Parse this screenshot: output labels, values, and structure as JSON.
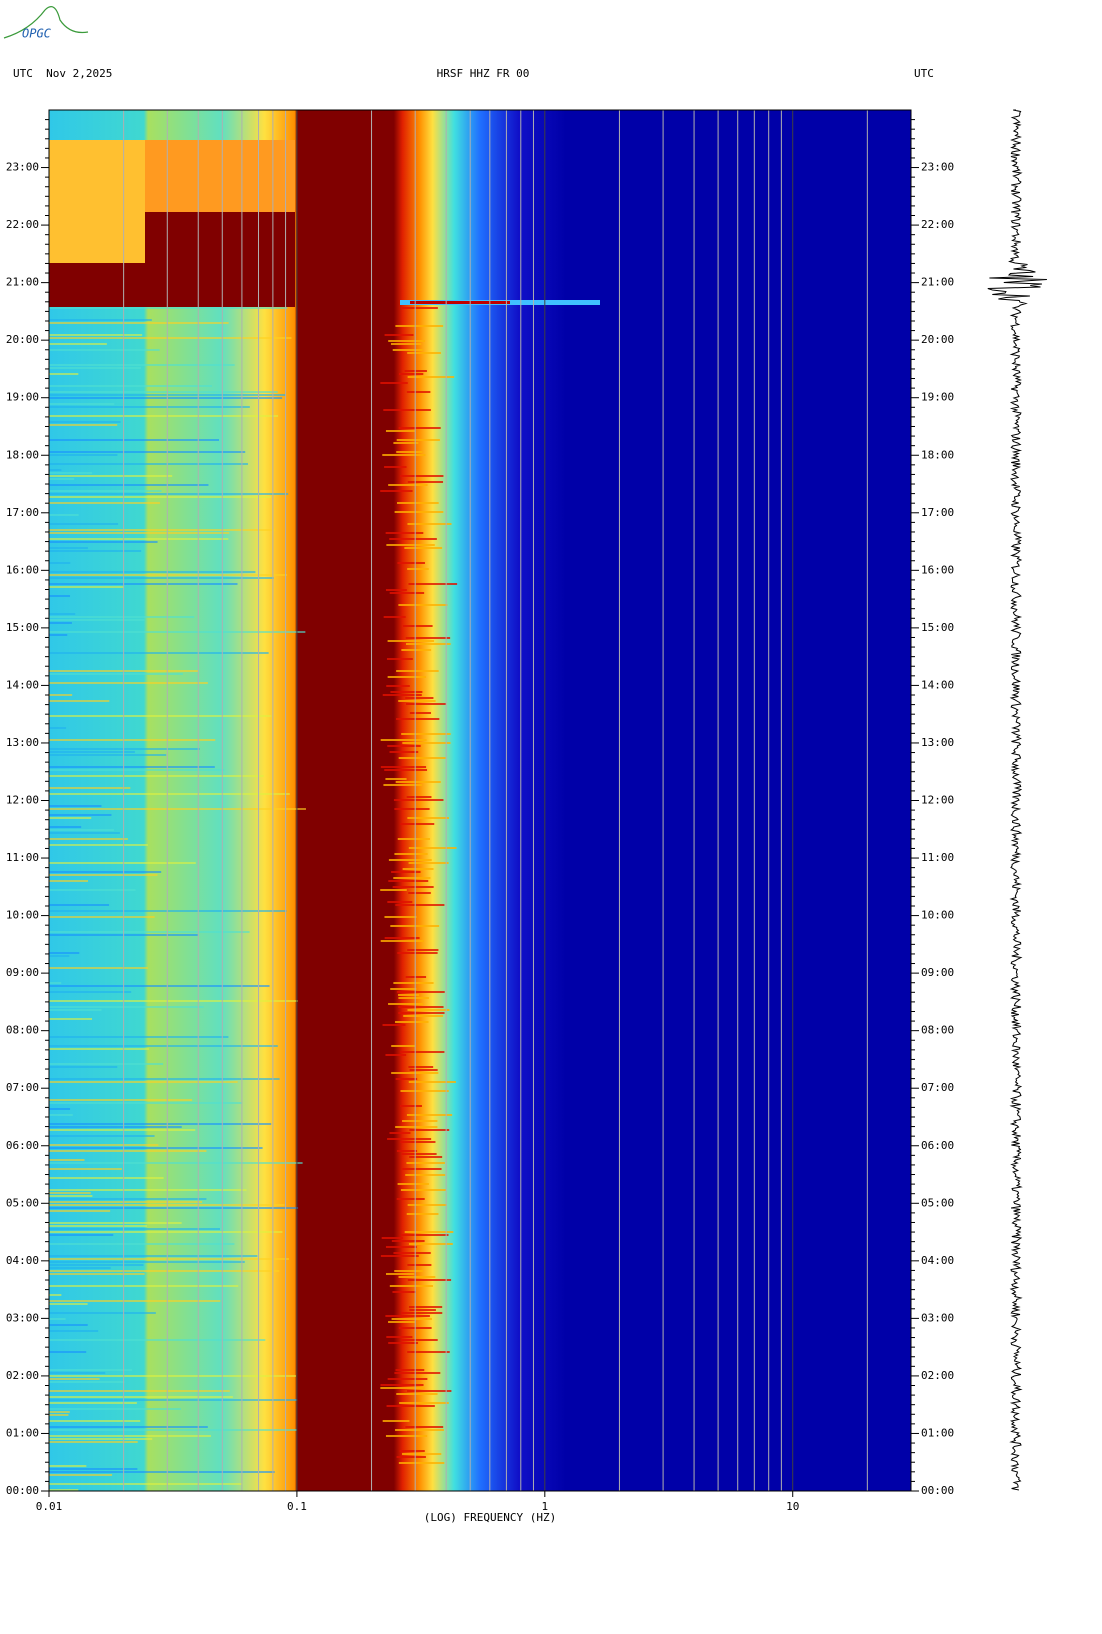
{
  "chart_data": {
    "type": "spectrogram",
    "logo": "OPGC",
    "left_header": "UTC  Nov 2,2025",
    "title": "HRSF HHZ FR 00",
    "right_header": "UTC",
    "xlabel": "(LOG) FREQUENCY (HZ)",
    "xscale": "log",
    "xlim": [
      0.01,
      30
    ],
    "xticks": [
      0.01,
      0.1,
      1,
      10
    ],
    "xminor": [
      0.02,
      0.03,
      0.04,
      0.05,
      0.06,
      0.07,
      0.08,
      0.09,
      0.2,
      0.3,
      0.4,
      0.5,
      0.6,
      0.7,
      0.8,
      0.9,
      2,
      3,
      4,
      5,
      6,
      7,
      8,
      9,
      20
    ],
    "ylim": [
      0,
      24
    ],
    "yticks": [
      {
        "value": 0,
        "label": "00:00"
      },
      {
        "value": 1,
        "label": "01:00"
      },
      {
        "value": 2,
        "label": "02:00"
      },
      {
        "value": 3,
        "label": "03:00"
      },
      {
        "value": 4,
        "label": "04:00"
      },
      {
        "value": 5,
        "label": "05:00"
      },
      {
        "value": 6,
        "label": "06:00"
      },
      {
        "value": 7,
        "label": "07:00"
      },
      {
        "value": 8,
        "label": "08:00"
      },
      {
        "value": 9,
        "label": "09:00"
      },
      {
        "value": 10,
        "label": "10:00"
      },
      {
        "value": 11,
        "label": "11:00"
      },
      {
        "value": 12,
        "label": "12:00"
      },
      {
        "value": 13,
        "label": "13:00"
      },
      {
        "value": 14,
        "label": "14:00"
      },
      {
        "value": 15,
        "label": "15:00"
      },
      {
        "value": 16,
        "label": "16:00"
      },
      {
        "value": 17,
        "label": "17:00"
      },
      {
        "value": 18,
        "label": "18:00"
      },
      {
        "value": 19,
        "label": "19:00"
      },
      {
        "value": 20,
        "label": "20:00"
      },
      {
        "value": 21,
        "label": "21:00"
      },
      {
        "value": 22,
        "label": "22:00"
      },
      {
        "value": 23,
        "label": "23:00"
      }
    ]
  }
}
